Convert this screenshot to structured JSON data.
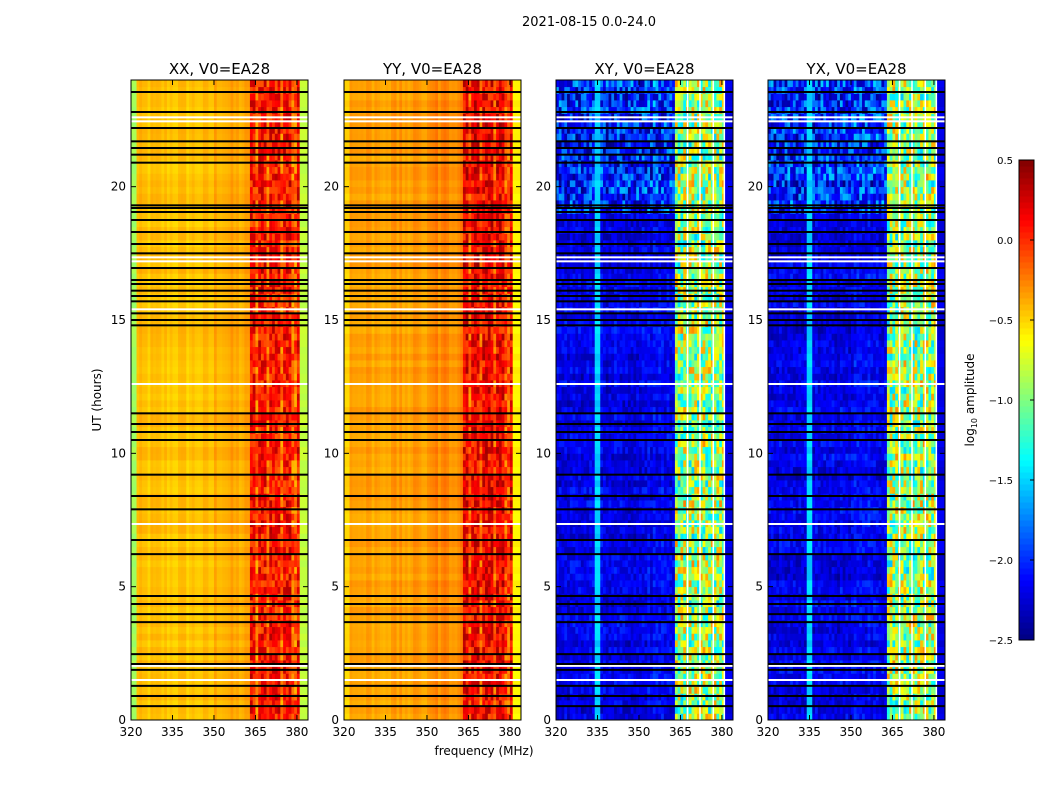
{
  "chart_data": {
    "type": "heatmap",
    "title": "2021-08-15 0.0-24.0",
    "xlabel": "frequency (MHz)",
    "ylabel": "UT (hours)",
    "xlim": [
      320,
      384
    ],
    "ylim": [
      0,
      24
    ],
    "xticks": [
      320,
      335,
      350,
      365,
      380
    ],
    "yticks": [
      0,
      5,
      10,
      15,
      20
    ],
    "colorbar": {
      "label_main": "log",
      "label_sub": "10",
      "label_rest": " amplitude",
      "range": [
        -2.5,
        0.5
      ],
      "ticks": [
        "0.5",
        "0.0",
        "−0.5",
        "−1.0",
        "−1.5",
        "−2.0",
        "−2.5"
      ],
      "tick_values": [
        0.5,
        0.0,
        -0.5,
        -1.0,
        -1.5,
        -2.0,
        -2.5
      ],
      "colormap": "jet"
    },
    "panels": [
      {
        "title": "XX, V0=EA28",
        "levels": {
          "edge_low": -0.9,
          "mid": -0.45,
          "mid_high": -0.38,
          "rfi_band": 0.1,
          "edge_high": -0.8
        },
        "show_ylabel": true,
        "show_xlabel": false
      },
      {
        "title": "YY, V0=EA28",
        "levels": {
          "edge_low": -0.5,
          "mid": -0.35,
          "mid_high": -0.28,
          "rfi_band": 0.15,
          "edge_high": -0.6
        },
        "show_ylabel": false,
        "show_xlabel": true
      },
      {
        "title": "XY, V0=EA28",
        "levels": {
          "edge_low": -2.2,
          "mid": -2.2,
          "mid_high": -2.15,
          "rfi_band": -0.9,
          "edge_high": -2.2
        },
        "show_ylabel": false,
        "show_xlabel": false
      },
      {
        "title": "YX, V0=EA28",
        "levels": {
          "edge_low": -2.2,
          "mid": -2.2,
          "mid_high": -2.15,
          "rfi_band": -0.9,
          "edge_high": -2.2
        },
        "show_ylabel": false,
        "show_xlabel": false
      }
    ],
    "rfi_band_mhz": [
      363,
      381
    ],
    "flagged_black_rows_ut": [
      23.55,
      22.8,
      22.2,
      21.7,
      21.45,
      21.2,
      20.9,
      19.3,
      19.2,
      19.05,
      18.75,
      18.3,
      17.85,
      17.5,
      16.95,
      16.5,
      16.35,
      16.1,
      15.9,
      15.7,
      15.25,
      15.0,
      14.8,
      11.5,
      11.1,
      10.8,
      10.5,
      9.2,
      8.4,
      7.9,
      6.75,
      6.22,
      4.65,
      4.35,
      3.97,
      3.67,
      2.47,
      2.1,
      1.88,
      1.28,
      0.9,
      0.52
    ],
    "flagged_white_rows_ut": [
      22.6,
      22.45,
      17.35,
      17.2,
      15.4,
      12.6,
      7.35,
      2.03,
      1.5
    ]
  }
}
